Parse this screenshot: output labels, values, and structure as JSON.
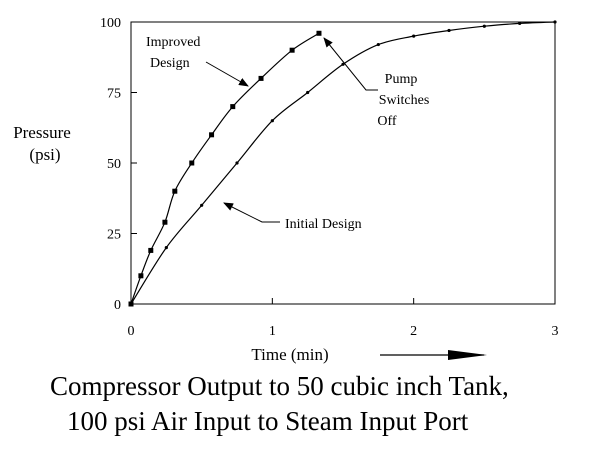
{
  "chart_data": {
    "type": "line",
    "title": "",
    "xlabel": "Time (min)",
    "ylabel": [
      "Pressure",
      "(psi)"
    ],
    "xlim": [
      0,
      3
    ],
    "ylim": [
      0,
      100
    ],
    "x_ticks": [
      0,
      1,
      2,
      3
    ],
    "y_ticks": [
      0,
      25,
      50,
      75,
      100
    ],
    "x_tick_labels": [
      "0",
      "1",
      "2",
      "3"
    ],
    "y_tick_labels": [
      "0",
      "25",
      "50",
      "75",
      "100"
    ],
    "grid": false,
    "legend": "none",
    "series": [
      {
        "name": "Improved Design",
        "marker": "square",
        "color": "#000000",
        "x": [
          0,
          0.07,
          0.14,
          0.24,
          0.31,
          0.43,
          0.57,
          0.72,
          0.92,
          1.14,
          1.33
        ],
        "y": [
          0,
          10,
          19,
          29,
          40,
          50,
          60,
          70,
          80,
          90,
          96
        ]
      },
      {
        "name": "Initial Design",
        "marker": "dot",
        "color": "#000000",
        "x": [
          0,
          0.25,
          0.5,
          0.75,
          1.0,
          1.25,
          1.5,
          1.75,
          2.0,
          2.25,
          2.5,
          2.75,
          3.0
        ],
        "y": [
          0,
          20,
          35,
          50,
          65,
          75,
          85,
          92,
          95,
          97,
          98.5,
          99.5,
          100
        ]
      }
    ],
    "annotations": [
      {
        "id": "improved",
        "lines": [
          "Improved",
          "Design"
        ],
        "points_to": "Improved Design"
      },
      {
        "id": "pump",
        "lines": [
          "Pump",
          "Switches",
          "Off"
        ],
        "points_to": "Improved Design end"
      },
      {
        "id": "initial",
        "lines": [
          "Initial Design"
        ],
        "points_to": "Initial Design"
      }
    ]
  },
  "caption": {
    "line1": "Compressor Output to 50 cubic inch Tank,",
    "line2": "100 psi Air Input to Steam Input Port"
  },
  "colors": {
    "ink": "#000000",
    "background": "#ffffff"
  }
}
